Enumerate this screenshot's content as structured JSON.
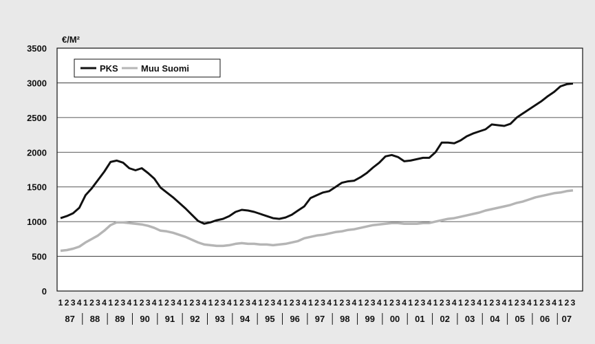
{
  "chart_data": {
    "type": "line",
    "ylabel": "€/M²",
    "ylim": [
      0,
      3500
    ],
    "yticks": [
      0,
      500,
      1000,
      1500,
      2000,
      2500,
      3000,
      3500
    ],
    "grid": true,
    "legend_position": "top-left",
    "quarter_labels": [
      "1",
      "2",
      "3",
      "4"
    ],
    "years": [
      "87",
      "88",
      "89",
      "90",
      "91",
      "92",
      "93",
      "94",
      "95",
      "96",
      "97",
      "98",
      "99",
      "00",
      "01",
      "02",
      "03",
      "04",
      "05",
      "06",
      "07"
    ],
    "x_note": "quarters 1987Q1 – 2007Q3",
    "series": [
      {
        "name": "PKS",
        "color": "#111111",
        "values": [
          1050,
          1080,
          1120,
          1200,
          1380,
          1480,
          1600,
          1720,
          1860,
          1880,
          1850,
          1770,
          1740,
          1770,
          1700,
          1620,
          1490,
          1420,
          1350,
          1270,
          1190,
          1100,
          1010,
          970,
          990,
          1020,
          1040,
          1080,
          1140,
          1170,
          1160,
          1140,
          1110,
          1080,
          1050,
          1040,
          1060,
          1100,
          1160,
          1220,
          1340,
          1380,
          1420,
          1440,
          1500,
          1560,
          1580,
          1590,
          1640,
          1700,
          1780,
          1850,
          1940,
          1960,
          1930,
          1870,
          1880,
          1900,
          1920,
          1920,
          2000,
          2140,
          2140,
          2130,
          2170,
          2230,
          2270,
          2300,
          2330,
          2400,
          2390,
          2380,
          2410,
          2500,
          2560,
          2620,
          2680,
          2740,
          2810,
          2870,
          2950,
          2980,
          2990
        ]
      },
      {
        "name": "Muu Suomi",
        "color": "#b5b5b5",
        "values": [
          580,
          590,
          610,
          640,
          700,
          750,
          800,
          870,
          950,
          990,
          990,
          980,
          970,
          960,
          940,
          910,
          870,
          860,
          840,
          810,
          780,
          740,
          700,
          670,
          660,
          650,
          650,
          660,
          680,
          690,
          680,
          680,
          670,
          670,
          660,
          670,
          680,
          700,
          720,
          760,
          780,
          800,
          810,
          830,
          850,
          860,
          880,
          890,
          910,
          930,
          950,
          960,
          970,
          980,
          980,
          970,
          970,
          970,
          980,
          980,
          1000,
          1020,
          1040,
          1050,
          1070,
          1090,
          1110,
          1130,
          1160,
          1180,
          1200,
          1220,
          1240,
          1270,
          1290,
          1320,
          1350,
          1370,
          1390,
          1410,
          1420,
          1440,
          1450
        ]
      }
    ]
  }
}
